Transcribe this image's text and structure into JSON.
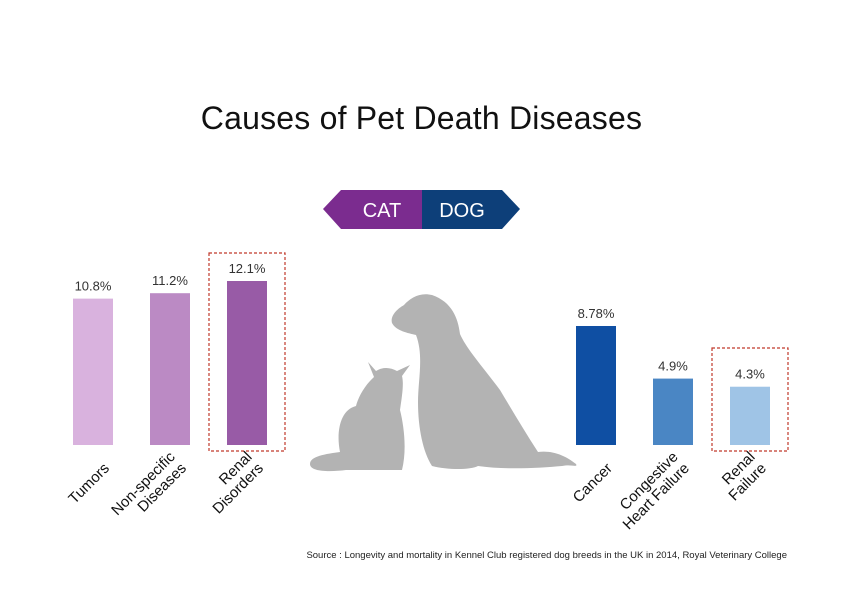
{
  "title": "Causes of Pet Death Diseases",
  "toggle": {
    "cat_label": "CAT",
    "dog_label": "DOG"
  },
  "source": "Source : Longevity and mortality in Kennel Club registered dog breeds in the UK in 2014, Royal Veterinary College",
  "icons": [
    "cat-silhouette-icon",
    "dog-silhouette-icon"
  ],
  "chart_data": [
    {
      "type": "bar",
      "group": "CAT",
      "categories": [
        "Tumors",
        "Non-specific\nDiseases",
        "Renal\nDisorders"
      ],
      "values": [
        10.8,
        11.2,
        12.1
      ],
      "data_labels": [
        "10.8%",
        "11.2%",
        "12.1%"
      ],
      "colors": [
        "#d9b2de",
        "#bb8ac4",
        "#985ba6"
      ],
      "highlighted": [
        false,
        false,
        true
      ]
    },
    {
      "type": "bar",
      "group": "DOG",
      "categories": [
        "Cancer",
        "Congestive\nHeart Failure",
        "Renal\nFailure"
      ],
      "values": [
        8.78,
        4.9,
        4.3
      ],
      "data_labels": [
        "8.78%",
        "4.9%",
        "4.3%"
      ],
      "colors": [
        "#0f4fa3",
        "#4a86c4",
        "#9fc4e6"
      ],
      "highlighted": [
        false,
        false,
        true
      ]
    }
  ],
  "colors": {
    "cat_accent": "#7b2c8f",
    "dog_accent": "#0d3f79",
    "highlight_border": "#c0392b",
    "silhouette": "#b3b3b3"
  }
}
